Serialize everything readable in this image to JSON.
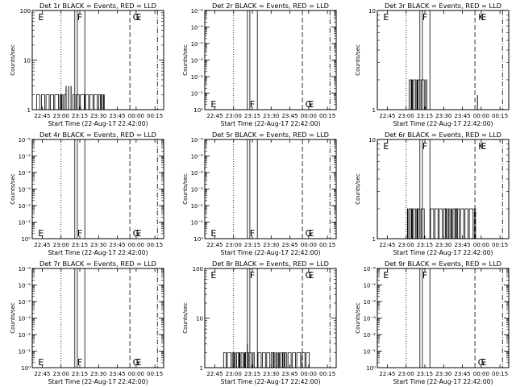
{
  "chart_data": [
    {
      "type": "bar",
      "title": "Det 1r BLACK = Events, RED = LLD",
      "scale": "log",
      "xlabel": "Start Time (22-Aug-17 22:42:00)",
      "ylabel": "Counts/sec",
      "xtick_labels": [
        "22:45",
        "23:00",
        "23:15",
        "23:30",
        "23:45",
        "00:00",
        "00:15"
      ],
      "ytick_labels": [
        "1",
        "10",
        "100"
      ],
      "ylim_decades": [
        0,
        2
      ],
      "markers": [
        {
          "label": "E",
          "minute": 2,
          "level": "top"
        },
        {
          "label": "F",
          "minute": 33,
          "level": "top"
        },
        {
          "label": "G",
          "minute": 78,
          "level": "top"
        },
        {
          "label": "E",
          "minute": 80,
          "level": "top"
        }
      ],
      "events": {
        "segments": [
          [
            -2,
            22
          ],
          [
            27,
            52
          ]
        ],
        "base": 1,
        "peak": 2,
        "spikes": [
          [
            22,
            3
          ],
          [
            24,
            3
          ],
          [
            26,
            3
          ]
        ]
      }
    },
    {
      "type": "bar",
      "title": "Det 2r BLACK = Events, RED = LLD",
      "scale": "log",
      "xlabel": "Start Time (22-Aug-17 22:42:00)",
      "ylabel": "Counts/sec",
      "xtick_labels": [
        "22:45",
        "23:00",
        "23:15",
        "23:30",
        "23:45",
        "00:00",
        "00:15"
      ],
      "ytick_labels": [
        "10⁰",
        "10⁻¹",
        "10⁻²",
        "10⁻³",
        "10⁻⁴",
        "10⁻⁵",
        "10⁻⁶"
      ],
      "ylim_decades": [
        -6,
        0
      ],
      "markers": [
        {
          "label": "E",
          "minute": 2,
          "level": "bottom"
        },
        {
          "label": "F",
          "minute": 33,
          "level": "bottom"
        },
        {
          "label": "G",
          "minute": 78,
          "level": "bottom"
        },
        {
          "label": "E",
          "minute": 80,
          "level": "bottom"
        }
      ],
      "events": null
    },
    {
      "type": "bar",
      "title": "Det 3r BLACK = Events, RED = LLD",
      "scale": "log",
      "xlabel": "Start Time (22-Aug-17 22:42:00)",
      "ylabel": "Counts/sec",
      "xtick_labels": [
        "22:45",
        "23:00",
        "23:15",
        "23:30",
        "23:45",
        "00:00",
        "00:15"
      ],
      "ytick_labels": [
        "1",
        "10"
      ],
      "ylim_decades": [
        0,
        1
      ],
      "markers": [
        {
          "label": "E",
          "minute": 2,
          "level": "top"
        },
        {
          "label": "F",
          "minute": 33,
          "level": "top"
        },
        {
          "label": "K",
          "minute": 78,
          "level": "top"
        },
        {
          "label": "E",
          "minute": 80,
          "level": "top"
        }
      ],
      "events": {
        "segments": [
          [
            20,
            34
          ]
        ],
        "base": 1,
        "peak": 2,
        "spikes": [
          [
            75,
            1.4
          ]
        ]
      }
    },
    {
      "type": "bar",
      "title": "Det 4r BLACK = Events, RED = LLD",
      "scale": "log",
      "xlabel": "Start Time (22-Aug-17 22:42:00)",
      "ylabel": "Counts/sec",
      "xtick_labels": [
        "22:45",
        "23:00",
        "23:15",
        "23:30",
        "23:45",
        "00:00",
        "00:15"
      ],
      "ytick_labels": [
        "10⁰",
        "10⁻¹",
        "10⁻²",
        "10⁻³",
        "10⁻⁴",
        "10⁻⁵",
        "10⁻⁶"
      ],
      "ylim_decades": [
        -6,
        0
      ],
      "markers": [
        {
          "label": "E",
          "minute": 2,
          "level": "bottom"
        },
        {
          "label": "F",
          "minute": 33,
          "level": "bottom"
        },
        {
          "label": "G",
          "minute": 78,
          "level": "bottom"
        },
        {
          "label": "E",
          "minute": 80,
          "level": "bottom"
        }
      ],
      "events": null
    },
    {
      "type": "bar",
      "title": "Det 5r BLACK = Events, RED = LLD",
      "scale": "log",
      "xlabel": "Start Time (22-Aug-17 22:42:00)",
      "ylabel": "Counts/sec",
      "xtick_labels": [
        "22:45",
        "23:00",
        "23:15",
        "23:30",
        "23:45",
        "00:00",
        "00:15"
      ],
      "ytick_labels": [
        "10⁰",
        "10⁻¹",
        "10⁻²",
        "10⁻³",
        "10⁻⁴",
        "10⁻⁵",
        "10⁻⁶"
      ],
      "ylim_decades": [
        -6,
        0
      ],
      "markers": [
        {
          "label": "E",
          "minute": 2,
          "level": "bottom"
        },
        {
          "label": "F",
          "minute": 33,
          "level": "bottom"
        },
        {
          "label": "G",
          "minute": 78,
          "level": "bottom"
        },
        {
          "label": "E",
          "minute": 80,
          "level": "bottom"
        }
      ],
      "events": null
    },
    {
      "type": "bar",
      "title": "Det 6r BLACK = Events, RED = LLD",
      "scale": "log",
      "xlabel": "Start Time (22-Aug-17 22:42:00)",
      "ylabel": "Counts/sec",
      "xtick_labels": [
        "22:45",
        "23:00",
        "23:15",
        "23:30",
        "23:45",
        "00:00",
        "00:15"
      ],
      "ytick_labels": [
        "1",
        "10"
      ],
      "ylim_decades": [
        0,
        1
      ],
      "markers": [
        {
          "label": "E",
          "minute": 2,
          "level": "top"
        },
        {
          "label": "F",
          "minute": 33,
          "level": "top"
        },
        {
          "label": "K",
          "minute": 78,
          "level": "top"
        },
        {
          "label": "E",
          "minute": 80,
          "level": "top"
        }
      ],
      "events": {
        "segments": [
          [
            19,
            32
          ],
          [
            37,
            73
          ]
        ],
        "base": 1,
        "peak": 2,
        "spikes": []
      }
    },
    {
      "type": "bar",
      "title": "Det 7r BLACK = Events, RED = LLD",
      "scale": "log",
      "xlabel": "Start Time (22-Aug-17 22:42:00)",
      "ylabel": "Counts/sec",
      "xtick_labels": [
        "22:45",
        "23:00",
        "23:15",
        "23:30",
        "23:45",
        "00:00",
        "00:15"
      ],
      "ytick_labels": [
        "10⁰",
        "10⁻¹",
        "10⁻²",
        "10⁻³",
        "10⁻⁴",
        "10⁻⁵",
        "10⁻⁶"
      ],
      "ylim_decades": [
        -6,
        0
      ],
      "markers": [
        {
          "label": "E",
          "minute": 2,
          "level": "bottom"
        },
        {
          "label": "F",
          "minute": 33,
          "level": "bottom"
        },
        {
          "label": "G",
          "minute": 78,
          "level": "bottom"
        },
        {
          "label": "E",
          "minute": 80,
          "level": "bottom"
        }
      ],
      "events": null
    },
    {
      "type": "bar",
      "title": "Det 8r BLACK = Events, RED = LLD",
      "scale": "log",
      "xlabel": "Start Time (22-Aug-17 22:42:00)",
      "ylabel": "Counts/sec",
      "xtick_labels": [
        "22:45",
        "23:00",
        "23:15",
        "23:30",
        "23:45",
        "00:00",
        "00:15"
      ],
      "ytick_labels": [
        "1",
        "10",
        "100"
      ],
      "ylim_decades": [
        0,
        2
      ],
      "markers": [
        {
          "label": "E",
          "minute": 2,
          "level": "top"
        },
        {
          "label": "F",
          "minute": 33,
          "level": "top"
        },
        {
          "label": "G",
          "minute": 78,
          "level": "top"
        },
        {
          "label": "E",
          "minute": 80,
          "level": "top"
        }
      ],
      "events": {
        "segments": [
          [
            10,
            34
          ],
          [
            37,
            78
          ]
        ],
        "base": 1,
        "peak": 2,
        "spikes": [
          [
            29,
            3
          ]
        ]
      }
    },
    {
      "type": "bar",
      "title": "Det 9r BLACK = Events, RED = LLD",
      "scale": "log",
      "xlabel": "Start Time (22-Aug-17 22:42:00)",
      "ylabel": "Counts/sec",
      "xtick_labels": [
        "22:45",
        "23:00",
        "23:15",
        "23:30",
        "23:45",
        "00:00",
        "00:15"
      ],
      "ytick_labels": [
        "10⁰",
        "10⁻¹",
        "10⁻²",
        "10⁻³",
        "10⁻⁴",
        "10⁻⁵",
        "10⁻⁶"
      ],
      "ylim_decades": [
        -6,
        0
      ],
      "markers": [
        {
          "label": "E",
          "minute": 2,
          "level": "top"
        },
        {
          "label": "F",
          "minute": 33,
          "level": "top"
        },
        {
          "label": "G",
          "minute": 78,
          "level": "bottom"
        },
        {
          "label": "E",
          "minute": 80,
          "level": "bottom"
        }
      ],
      "events": null
    }
  ]
}
